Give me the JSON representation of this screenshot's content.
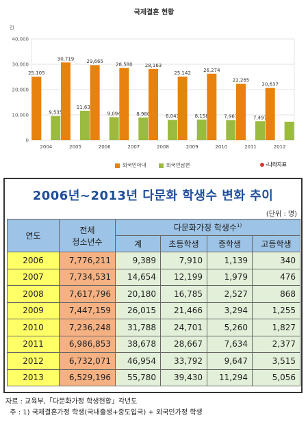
{
  "chart_data": [
    {
      "type": "bar",
      "title": "국제결혼 현황",
      "ylabel": "건",
      "ylim": [
        0,
        40000
      ],
      "yticks": [
        0,
        10000,
        20000,
        30000,
        40000
      ],
      "ytick_labels": [
        "0",
        "10,000",
        "20,000",
        "30,000",
        "40,000"
      ],
      "grid": true,
      "legend_position": "bottom",
      "categories": [
        "2004",
        "2005",
        "2006",
        "2007",
        "2008",
        "2009",
        "2010",
        "2011",
        "2012"
      ],
      "series": [
        {
          "name": "외국인아내",
          "color": "#e8820f",
          "values": [
            25105,
            30719,
            29665,
            28580,
            28163,
            25142,
            26274,
            22265,
            20637
          ],
          "labels": [
            "25,105",
            "30,719",
            "29,665",
            "28,580",
            "28,163",
            "25,142",
            "26,274",
            "22,265",
            "20,637"
          ]
        },
        {
          "name": "외국인남편",
          "color": "#9bbb3f",
          "values": [
            9535,
            11637,
            9094,
            8980,
            8041,
            8158,
            7961,
            7497,
            7300
          ],
          "labels": [
            "9,535",
            "11,637",
            "9,094",
            "8,980",
            "8,041",
            "8,158",
            "7,961",
            "7,497",
            ""
          ]
        }
      ]
    },
    {
      "type": "table",
      "title": "2006년~2013년 다문화 학생수 변화 추이",
      "unit": "(단위 : 명)",
      "columns": [
        "연도",
        "전체 청소년수",
        "계",
        "초등학생",
        "중학생",
        "고등학생"
      ],
      "rows": [
        [
          "2006",
          "7,776,211",
          "9,389",
          "7,910",
          "1,139",
          "340"
        ],
        [
          "2007",
          "7,734,531",
          "14,654",
          "12,199",
          "1,979",
          "476"
        ],
        [
          "2008",
          "7,617,796",
          "20,180",
          "16,785",
          "2,527",
          "868"
        ],
        [
          "2009",
          "7,447,159",
          "26,015",
          "21,466",
          "3,294",
          "1,255"
        ],
        [
          "2010",
          "7,236,248",
          "31,788",
          "24,701",
          "5,260",
          "1,827"
        ],
        [
          "2011",
          "6,986,853",
          "38,678",
          "28,667",
          "7,634",
          "2,377"
        ],
        [
          "2012",
          "6,732,071",
          "46,954",
          "33,792",
          "9,647",
          "3,515"
        ],
        [
          "2013",
          "6,529,196",
          "55,780",
          "39,430",
          "11,294",
          "5,056"
        ]
      ]
    }
  ],
  "chart": {
    "title": "국제결혼 현황",
    "unit": "건",
    "legend": {
      "wife": "외국인아내",
      "husband": "외국인남편"
    },
    "brand": "-나라지표"
  },
  "table": {
    "title": "2006년~2013년 다문화 학생수 변화 추이",
    "unit": "(단위 : 명)",
    "header": {
      "year": "연도",
      "total_line1": "전체",
      "total_line2": "청소년수",
      "group": "다문화가정 학생수",
      "group_sup": "1)",
      "sum": "계",
      "elementary": "초등학생",
      "middle": "중학생",
      "high": "고등학생"
    }
  },
  "notes": {
    "source": "자료 : 교육부,「다문화가정 학생현황」각년도",
    "footnote": "  주 : 1) 국제결혼가정 학생(국내출생+중도입국) + 외국인가정 학생"
  }
}
